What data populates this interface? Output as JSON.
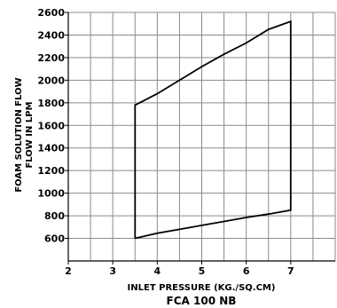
{
  "chart_data": {
    "type": "line",
    "title": "FCA 100 NB",
    "xlabel": "INLET PRESSURE (KG./SQ.CM)",
    "ylabel_lines": [
      "FOAM SOLUTION FLOW",
      "FLOW IN LPM"
    ],
    "xlim": [
      2,
      8
    ],
    "ylim": [
      400,
      2600
    ],
    "xticks": [
      2,
      3,
      4,
      5,
      6,
      7
    ],
    "yticks": [
      600,
      800,
      1000,
      1200,
      1400,
      1600,
      1800,
      2000,
      2200,
      2400,
      2600
    ],
    "grid": true,
    "series": [
      {
        "outline": [
          [
            3.5,
            600
          ],
          [
            4,
            645
          ],
          [
            4.5,
            680
          ],
          [
            5,
            715
          ],
          [
            5.5,
            750
          ],
          [
            6,
            785
          ],
          [
            6.5,
            815
          ],
          [
            7,
            850
          ],
          [
            7,
            2520
          ],
          [
            6.5,
            2450
          ],
          [
            6,
            2330
          ],
          [
            5.5,
            2230
          ],
          [
            5,
            2120
          ],
          [
            4.5,
            2000
          ],
          [
            4,
            1880
          ],
          [
            3.5,
            1780
          ],
          [
            3.5,
            600
          ]
        ]
      }
    ]
  }
}
